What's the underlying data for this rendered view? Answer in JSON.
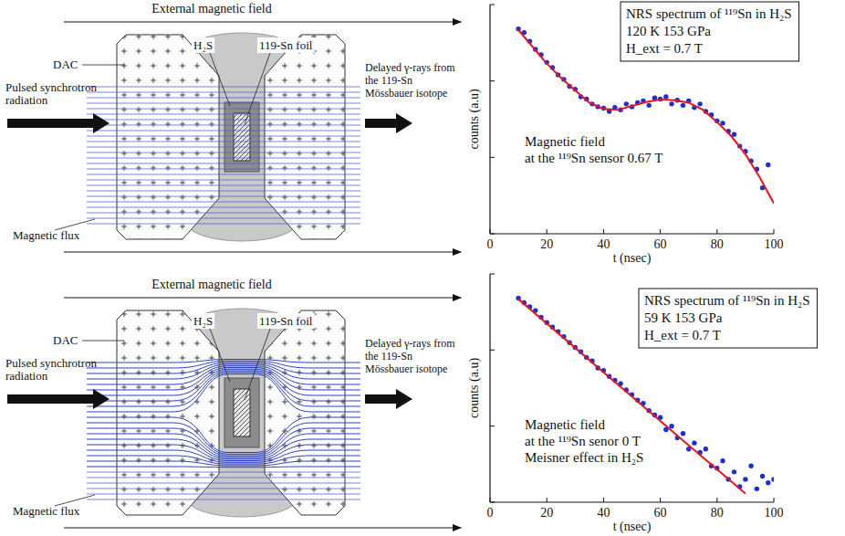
{
  "diagrams": [
    {
      "field_label": "External magnetic field",
      "dac": "DAC",
      "sample": "H₂S",
      "foil": "119-Sn foil",
      "beam": "Pulsed synchrotron radiation",
      "flux": "Magnetic flux",
      "output": "Delayed γ-rays from the 119-Sn Mössbauer isotope"
    },
    {
      "field_label": "External magnetic field",
      "dac": "DAC",
      "sample": "H₂S",
      "foil": "119-Sn foil",
      "beam": "Pulsed synchrotron radiation",
      "flux": "Magnetic flux",
      "output": "Delayed γ-rays from the 119-Sn Mössbauer isotope"
    }
  ],
  "chart_data": [
    {
      "type": "scatter",
      "x_label": "t (nsec)",
      "y_label": "counts (a.u)",
      "xlim": [
        0,
        100
      ],
      "xticks": [
        0,
        20,
        40,
        60,
        80,
        100
      ],
      "ylim": [
        1,
        1000
      ],
      "yticks": [
        1,
        10,
        100,
        1000
      ],
      "log": "y",
      "tick_labels": "x",
      "info_box": [
        "NRS spectrum of ¹¹⁹Sn in H₂S",
        "120 K  153 GPa",
        "H_ext = 0.7 T"
      ],
      "annotation": [
        "Magnetic field",
        "at the ¹¹⁹Sn sensor 0.67 T"
      ],
      "series": [
        {
          "type": "scatter",
          "color": "#1a2fd6",
          "marker": "circle",
          "x": [
            10,
            12,
            14,
            16,
            18,
            20,
            22,
            24,
            26,
            28,
            30,
            32,
            34,
            36,
            38,
            40,
            42,
            44,
            46,
            48,
            50,
            52,
            54,
            56,
            58,
            60,
            62,
            64,
            66,
            68,
            70,
            72,
            74,
            76,
            78,
            80,
            82,
            84,
            86,
            88,
            90,
            92,
            94,
            96,
            98
          ],
          "values": [
            480,
            430,
            330,
            260,
            220,
            175,
            150,
            120,
            105,
            85,
            78,
            62,
            58,
            50,
            46,
            44,
            40,
            45,
            42,
            50,
            46,
            52,
            55,
            48,
            60,
            58,
            62,
            50,
            56,
            48,
            55,
            45,
            50,
            40,
            36,
            30,
            28,
            22,
            20,
            14,
            12,
            9,
            7,
            4,
            8
          ]
        },
        {
          "type": "line",
          "color": "#e8141c",
          "line_style": "solid",
          "x": [
            10,
            15,
            20,
            25,
            30,
            35,
            40,
            45,
            50,
            55,
            60,
            65,
            70,
            75,
            80,
            85,
            90,
            95,
            100
          ],
          "values": [
            466,
            280,
            169,
            110,
            75,
            52,
            43,
            42,
            47,
            53,
            57,
            56,
            52,
            42,
            29,
            19,
            11,
            5.5,
            2.5
          ]
        }
      ]
    },
    {
      "type": "scatter",
      "x_label": "t (nsec)",
      "y_label": "counts (a.u)",
      "xlim": [
        0,
        100
      ],
      "xticks": [
        0,
        20,
        40,
        60,
        80,
        100
      ],
      "ylim": [
        1,
        1000
      ],
      "yticks": [
        1,
        10,
        100,
        1000
      ],
      "log": "y",
      "tick_labels": "x",
      "info_box": [
        "NRS spectrum of ¹¹⁹Sn in H₂S",
        "59 K 153 GPa",
        "H_ext = 0.7 T"
      ],
      "annotation": [
        "Magnetic field",
        "at the ¹¹⁹Sn senor 0 T",
        "Meisner effect in H₂S"
      ],
      "series": [
        {
          "type": "scatter",
          "color": "#1a2fd6",
          "marker": "circle",
          "x": [
            10,
            12,
            14,
            16,
            18,
            20,
            22,
            24,
            26,
            28,
            30,
            32,
            34,
            36,
            38,
            40,
            42,
            44,
            46,
            48,
            50,
            52,
            54,
            56,
            58,
            60,
            62,
            64,
            66,
            68,
            70,
            72,
            74,
            76,
            78,
            80,
            82,
            84,
            86,
            88,
            90,
            92,
            94,
            96,
            98,
            100
          ],
          "values": [
            480,
            420,
            370,
            330,
            270,
            230,
            200,
            175,
            150,
            125,
            108,
            95,
            80,
            72,
            58,
            54,
            45,
            40,
            36,
            30,
            26,
            22,
            20,
            16,
            14,
            13,
            9,
            10,
            7,
            8,
            5,
            6,
            4.5,
            5,
            3,
            2.8,
            3.5,
            2,
            2.5,
            1.6,
            2,
            3,
            1.5,
            2.2,
            1.8,
            2
          ]
        },
        {
          "type": "line",
          "color": "#e8141c",
          "line_style": "solid",
          "x": [
            10,
            20,
            30,
            40,
            50,
            60,
            70,
            80,
            90
          ],
          "values": [
            466,
            223,
            107,
            51,
            24.5,
            11.7,
            5.6,
            2.7,
            1.3
          ]
        }
      ]
    }
  ]
}
